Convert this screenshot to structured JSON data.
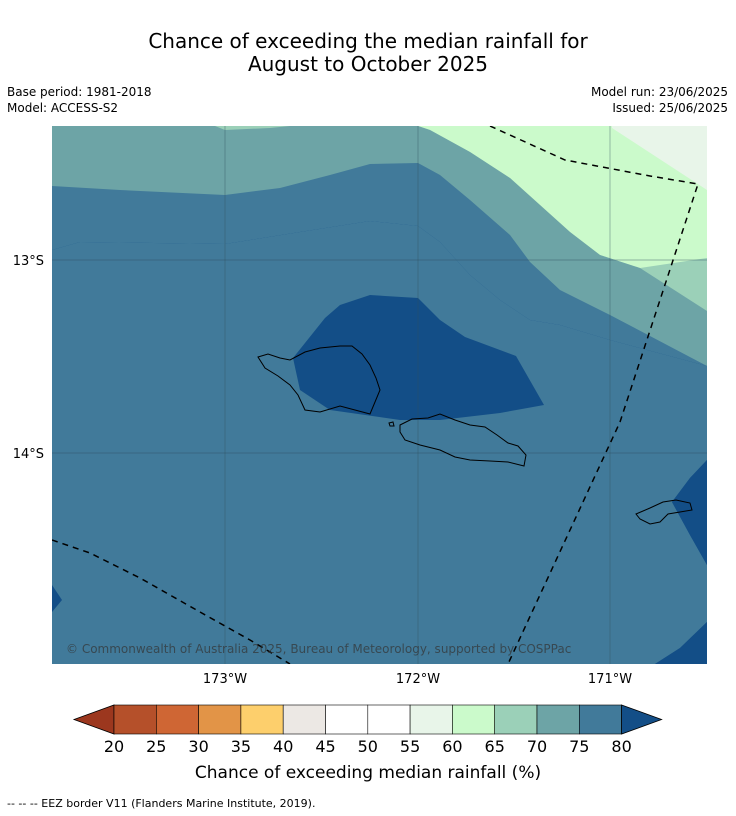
{
  "title": {
    "line1": "Chance of exceeding the median rainfall for",
    "line2": "August to October 2025"
  },
  "meta": {
    "base_period": "Base period: 1981-2018",
    "model": "Model: ACCESS-S2",
    "model_run": "Model run: 23/06/2025",
    "issued": "Issued: 25/06/2025"
  },
  "map": {
    "lat_labels": [
      "13°S",
      "14°S"
    ],
    "lon_labels": [
      "173°W",
      "172°W",
      "171°W"
    ],
    "copyright": "© Commonwealth of Australia 2025, Bureau of Meteorology, supported by COSPPac",
    "colors": {
      "band_60_65": "#e8f5e9",
      "band_65_70": "#cbfacb",
      "band_70_75": "#9bd0b8",
      "band_75_80": "#6da4a6",
      "band_80_85": "#417a9a",
      "band_above_85": "#134e87"
    }
  },
  "colorbar": {
    "ticks": [
      "20",
      "25",
      "30",
      "35",
      "40",
      "45",
      "50",
      "55",
      "60",
      "65",
      "70",
      "75",
      "80"
    ],
    "colors": [
      "#9c371e",
      "#b5502a",
      "#cf6634",
      "#e29447",
      "#fdcf6c",
      "#ece8e4",
      "#ffffff",
      "#ffffff",
      "#e8f5e9",
      "#cbfacb",
      "#9bd0b8",
      "#6da4a6",
      "#417a9a",
      "#134e87"
    ],
    "label": "Chance of exceeding median rainfall (%)"
  },
  "footnote": "--  --  -- EEZ border V11 (Flanders Marine Institute, 2019)."
}
